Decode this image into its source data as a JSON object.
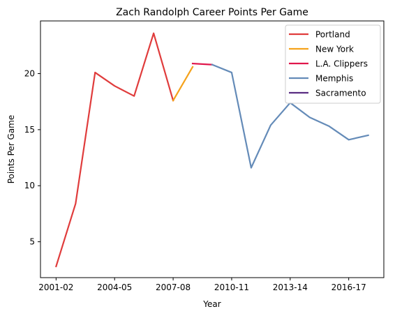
{
  "chart_data": {
    "type": "line",
    "title": "Zach Randolph Career Points Per Game",
    "xlabel": "Year",
    "ylabel": "Points Per Game",
    "x_categories": [
      "2001-02",
      "2002-03",
      "2003-04",
      "2004-05",
      "2005-06",
      "2006-07",
      "2007-08",
      "2008-09",
      "2009-10",
      "2010-11",
      "2011-12",
      "2012-13",
      "2013-14",
      "2014-15",
      "2015-16",
      "2016-17",
      "2017-18"
    ],
    "x_tick_labels": [
      "2001-02",
      "2004-05",
      "2007-08",
      "2010-11",
      "2013-14",
      "2016-17"
    ],
    "y_ticks": [
      5,
      10,
      15,
      20
    ],
    "ylim": [
      1.8,
      24.7
    ],
    "legend_position": "upper-right",
    "series": [
      {
        "name": "Portland",
        "color": "#e03c3c",
        "points": [
          {
            "x": "2001-02",
            "y": 2.8
          },
          {
            "x": "2002-03",
            "y": 8.4
          },
          {
            "x": "2003-04",
            "y": 20.1
          },
          {
            "x": "2004-05",
            "y": 18.9
          },
          {
            "x": "2005-06",
            "y": 18.0
          },
          {
            "x": "2006-07",
            "y": 23.6
          },
          {
            "x": "2007-08",
            "y": 17.6
          }
        ]
      },
      {
        "name": "New York",
        "color": "#f5a21b",
        "points": [
          {
            "x": "2007-08",
            "y": 17.6
          },
          {
            "x": "2008-09",
            "y": 20.6
          }
        ]
      },
      {
        "name": "L.A. Clippers",
        "color": "#e0174c",
        "points": [
          {
            "x": "2008-09",
            "y": 20.9
          },
          {
            "x": "2009-10",
            "y": 20.8
          }
        ]
      },
      {
        "name": "Memphis",
        "color": "#648bb8",
        "points": [
          {
            "x": "2009-10",
            "y": 20.8
          },
          {
            "x": "2010-11",
            "y": 20.1
          },
          {
            "x": "2011-12",
            "y": 11.6
          },
          {
            "x": "2012-13",
            "y": 15.4
          },
          {
            "x": "2013-14",
            "y": 17.4
          },
          {
            "x": "2014-15",
            "y": 16.1
          },
          {
            "x": "2015-16",
            "y": 15.3
          },
          {
            "x": "2016-17",
            "y": 14.1
          },
          {
            "x": "2017-18",
            "y": 14.5
          }
        ]
      },
      {
        "name": "Sacramento",
        "color": "#5a2d82",
        "points": []
      }
    ]
  }
}
